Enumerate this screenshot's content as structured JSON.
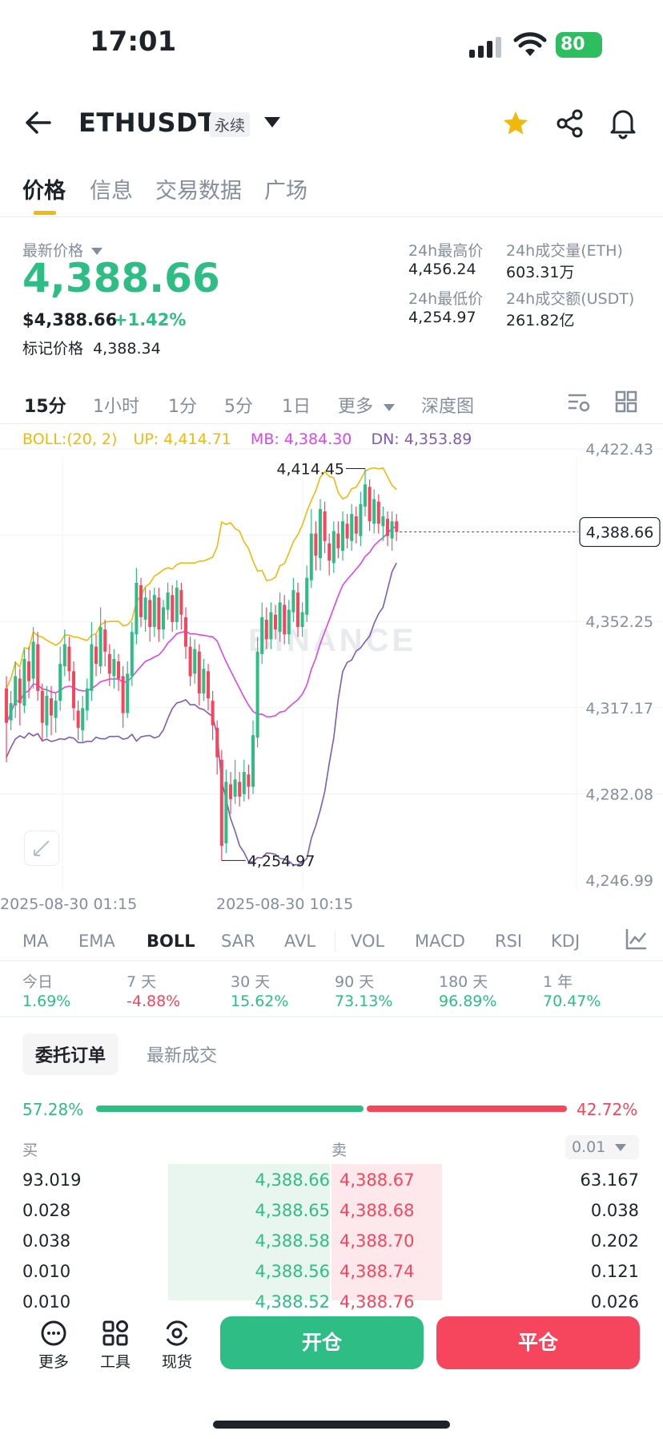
{
  "status_bar": {
    "time": "17:01",
    "battery": "80"
  },
  "header": {
    "symbol": "ETHUSDT",
    "badge": "永续"
  },
  "tabs": [
    "价格",
    "信息",
    "交易数据",
    "广场"
  ],
  "price": {
    "latest_label": "最新价格",
    "last": "4,388.66",
    "usd": "$4,388.66",
    "change": "+1.42%",
    "mark_label": "标记价格",
    "mark": "4,388.34"
  },
  "stats": {
    "high_label": "24h最高价",
    "high": "4,456.24",
    "low_label": "24h最低价",
    "low": "4,254.97",
    "vol_label": "24h成交量(ETH)",
    "vol": "603.31万",
    "amt_label": "24h成交额(USDT)",
    "amt": "261.82亿"
  },
  "timeframes": [
    "15分",
    "1小时",
    "1分",
    "5分",
    "1日",
    "更多",
    "深度图"
  ],
  "boll": {
    "label": "BOLL:(20, 2)",
    "up": "UP: 4,414.71",
    "mb": "MB: 4,384.30",
    "dn": "DN: 4,353.89"
  },
  "chart_data": {
    "type": "candlestick",
    "yticks": [
      "4,422.43",
      "4,352.25",
      "4,317.17",
      "4,282.08",
      "4,246.99"
    ],
    "xticks": [
      "2025-08-30 01:15",
      "2025-08-30 10:15"
    ],
    "current_price": "4,388.66",
    "high_marker": "4,414.45",
    "low_marker": "4,254.97",
    "watermark": "BINANCE",
    "colors": {
      "up": "#2ebd85",
      "down": "#f6465d",
      "upper": "#f0b90b",
      "mid": "#d946ef",
      "lower": "#7e5bb5"
    }
  },
  "indicators": [
    "MA",
    "EMA",
    "BOLL",
    "SAR",
    "AVL",
    "VOL",
    "MACD",
    "RSI",
    "KDJ"
  ],
  "performance": [
    {
      "label": "今日",
      "value": "1.69%"
    },
    {
      "label": "7 天",
      "value": "-4.88%"
    },
    {
      "label": "30 天",
      "value": "15.62%"
    },
    {
      "label": "90 天",
      "value": "73.13%"
    },
    {
      "label": "180 天",
      "value": "96.89%"
    },
    {
      "label": "1 年",
      "value": "70.47%"
    }
  ],
  "orderbook": {
    "tab_active": "委托订单",
    "tab_other": "最新成交",
    "buy_pct": "57.28%",
    "sell_pct": "42.72%",
    "buy_label": "买",
    "sell_label": "卖",
    "precision": "0.01",
    "rows": [
      {
        "bid_qty": "93.019",
        "bid": "4,388.66",
        "ask": "4,388.67",
        "ask_qty": "63.167"
      },
      {
        "bid_qty": "0.028",
        "bid": "4,388.65",
        "ask": "4,388.68",
        "ask_qty": "0.038"
      },
      {
        "bid_qty": "0.038",
        "bid": "4,388.58",
        "ask": "4,388.70",
        "ask_qty": "0.202"
      },
      {
        "bid_qty": "0.010",
        "bid": "4,388.56",
        "ask": "4,388.74",
        "ask_qty": "0.121"
      },
      {
        "bid_qty": "0.010",
        "bid": "4,388.52",
        "ask": "4,388.76",
        "ask_qty": "0.026"
      }
    ]
  },
  "bottom_nav": {
    "more": "更多",
    "tools": "工具",
    "spot": "现货",
    "open": "开仓",
    "close": "平仓"
  }
}
